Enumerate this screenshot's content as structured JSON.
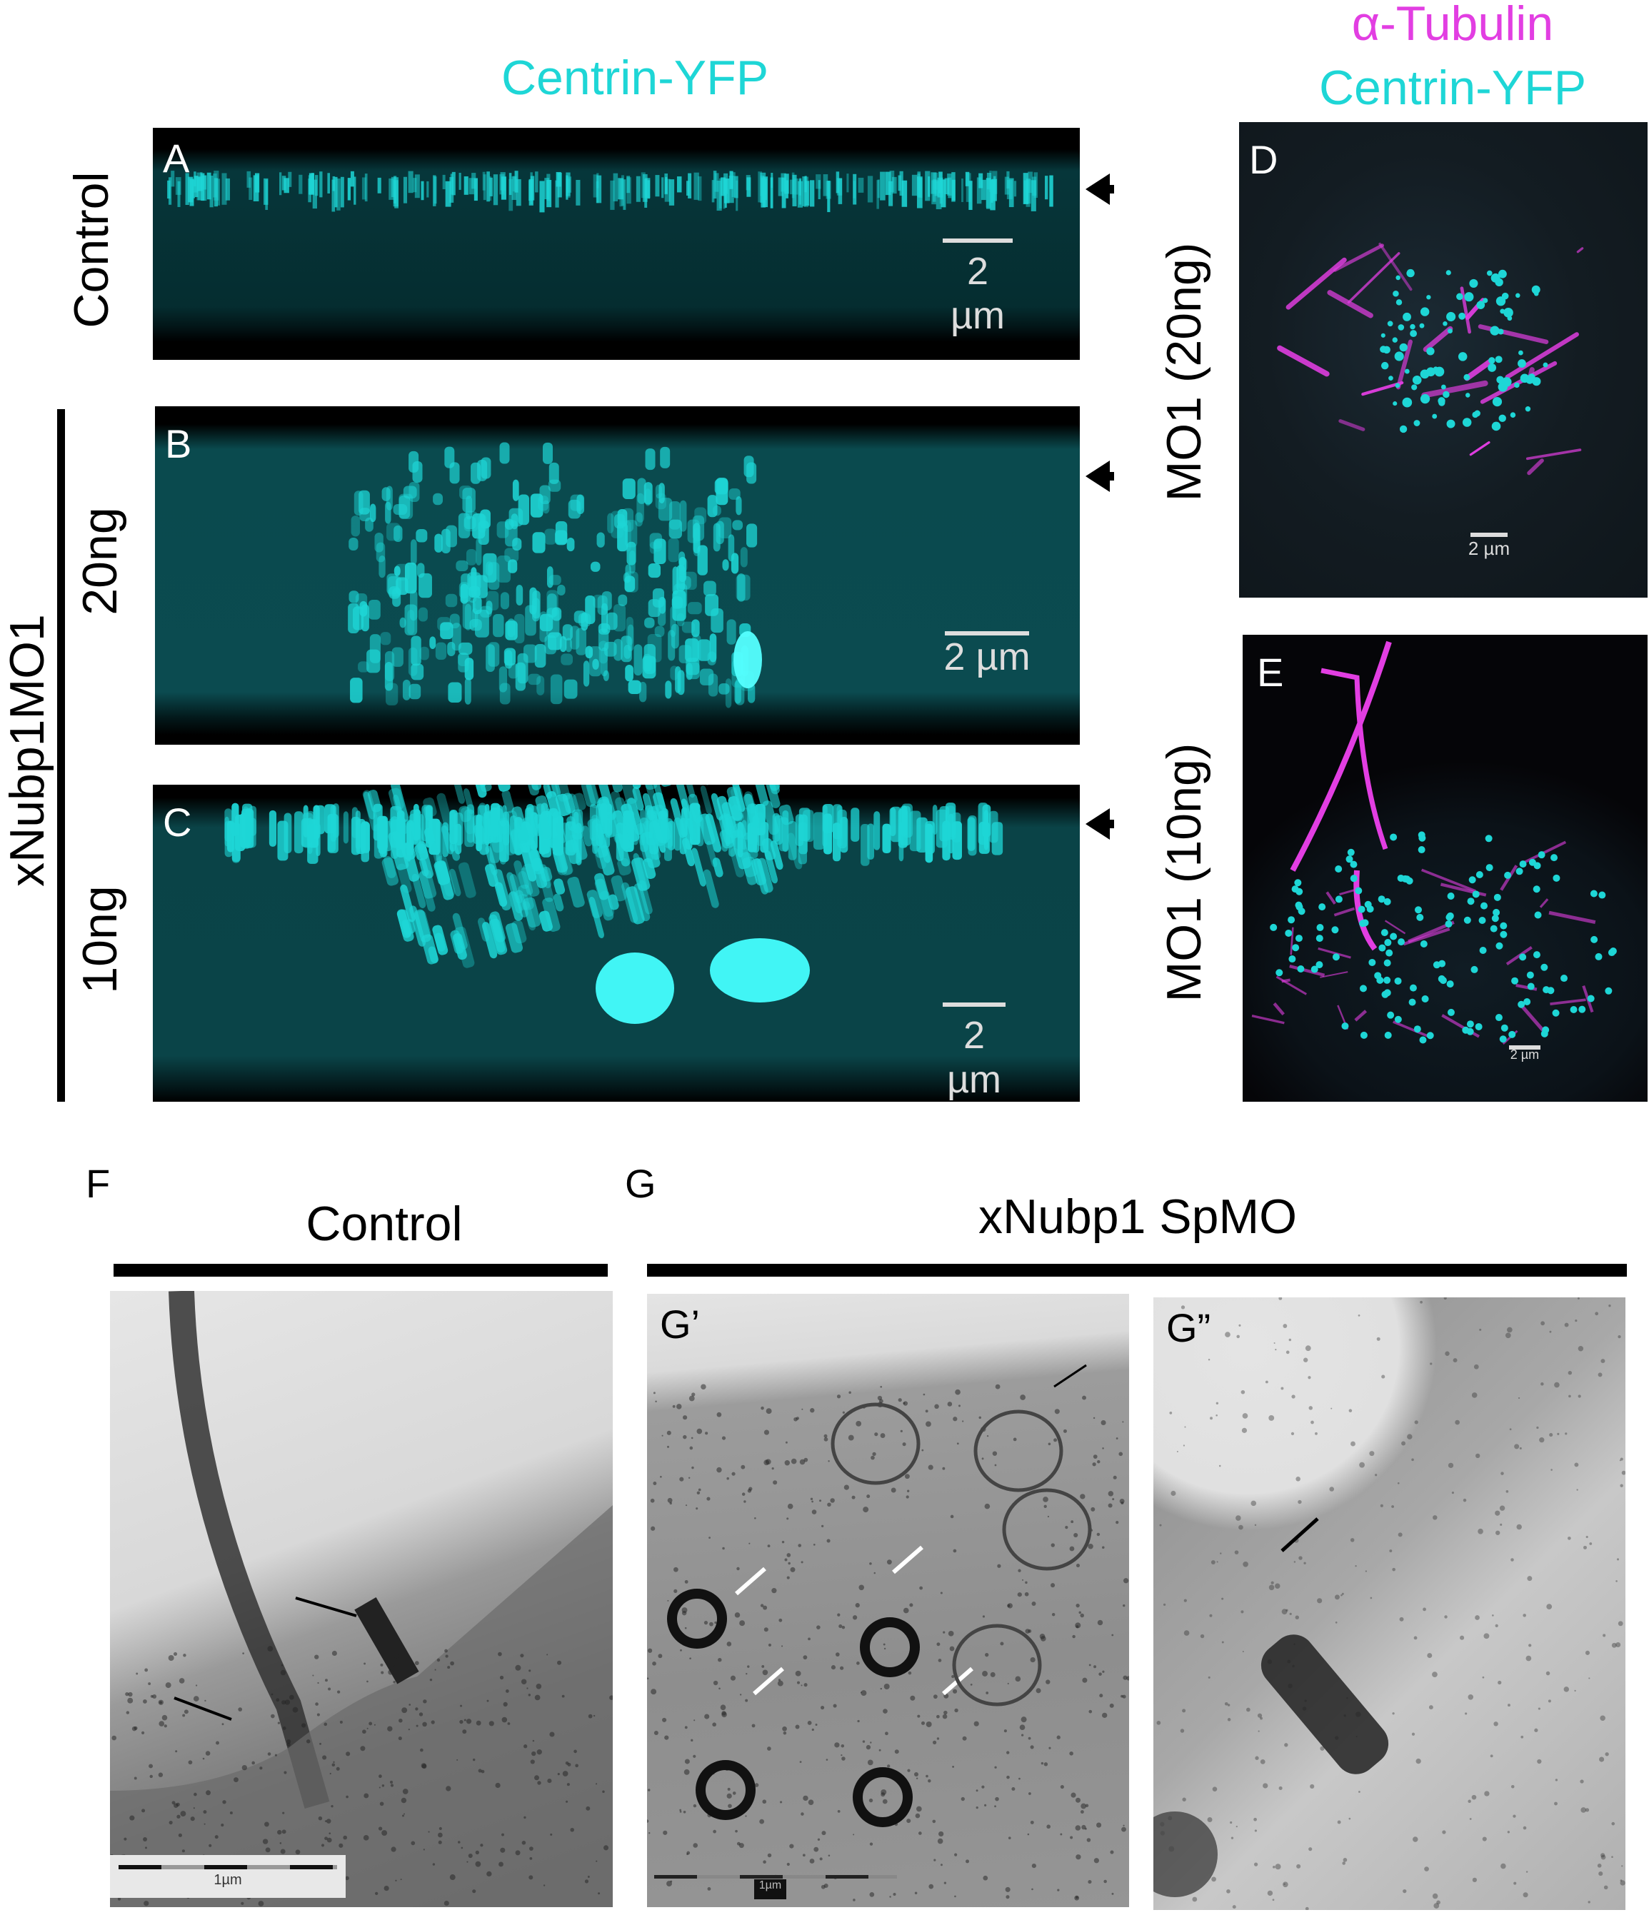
{
  "figure": {
    "header_centrin": "Centrin-YFP",
    "header_tubulin": "α-Tubulin",
    "header_centrin_right": "Centrin-YFP",
    "row_control": "Control",
    "row_group": "xNubp1MO1",
    "row_20ng": "20ng",
    "row_10ng": "10ng",
    "side_d": "MO1 (20ng)",
    "side_e": "MO1 (10ng)",
    "colors": {
      "centrin": "#1ed6d6",
      "tubulin": "#e23ee2"
    }
  },
  "panels": {
    "a": {
      "label": "A",
      "scale": "2 µm"
    },
    "b": {
      "label": "B",
      "scale": "2 µm"
    },
    "c": {
      "label": "C",
      "scale": "2 µm"
    },
    "d": {
      "label": "D",
      "scale": "2 µm"
    },
    "e": {
      "label": "E",
      "scale": "2 µm"
    },
    "f": {
      "label": "F",
      "title": "Control",
      "scale": "1µm"
    },
    "g": {
      "label": "G",
      "title": "xNubp1 SpMO"
    },
    "g1": {
      "label": "G’",
      "scale": "1µm"
    },
    "g2": {
      "label": "G”"
    }
  }
}
